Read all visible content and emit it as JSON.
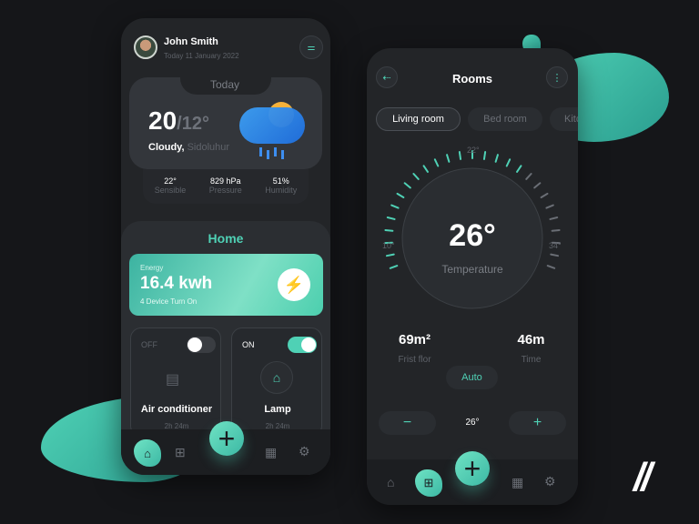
{
  "left_phone": {
    "user": {
      "name": "John Smith",
      "date": "Today  11 January 2022"
    },
    "weather": {
      "tab": "Today",
      "high": "20",
      "low": "/12°",
      "condition": "Cloudy,",
      "location": "Sidoluhur",
      "stats": [
        {
          "value": "22°",
          "label": "Sensible"
        },
        {
          "value": "829 hPa",
          "label": "Pressure"
        },
        {
          "value": "51%",
          "label": "Humidity"
        }
      ]
    },
    "home": {
      "title": "Home",
      "energy": {
        "label": "Energy",
        "value": "16.4 kwh",
        "sub": "4 Device Turn On"
      },
      "devices": [
        {
          "state": "OFF",
          "name": "Air conditioner",
          "time": "2h 24m",
          "on": false
        },
        {
          "state": "ON",
          "name": "Lamp",
          "time": "2h 24m",
          "on": true
        }
      ]
    },
    "fab": "+"
  },
  "right_phone": {
    "title": "Rooms",
    "tabs": [
      "Living room",
      "Bed room",
      "Kitchen"
    ],
    "dial": {
      "min": "10°",
      "mid": "22°",
      "max": "34°",
      "value": "26°",
      "label": "Temperature",
      "level_fraction": 0.67
    },
    "stats": [
      {
        "value": "69m²",
        "label": "Frist flor"
      },
      {
        "value": "46m",
        "label": "Time"
      }
    ],
    "mode": "Auto",
    "stepper": {
      "minus": "−",
      "value": "26°",
      "plus": "+"
    },
    "fab": "+"
  },
  "logo": "//",
  "colors": {
    "accent": "#4fd1b5",
    "background": "#151619",
    "card": "#232528"
  }
}
